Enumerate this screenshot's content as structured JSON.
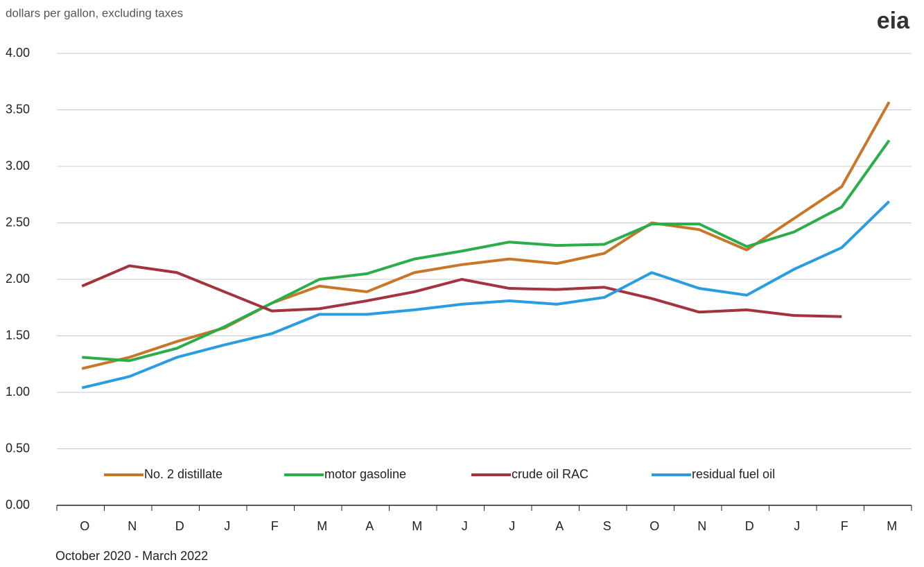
{
  "logo": "eia",
  "chart_data": {
    "type": "line",
    "subtitle": "dollars per gallon, excluding taxes",
    "x_label": "October 2020  -  March 2022",
    "categories": [
      "O",
      "N",
      "D",
      "J",
      "F",
      "M",
      "A",
      "M",
      "J",
      "J",
      "A",
      "S",
      "O",
      "N",
      "D",
      "J",
      "F",
      "M"
    ],
    "series": [
      {
        "name": "No. 2 distillate",
        "color": "#c8762a",
        "values": [
          1.21,
          1.31,
          1.45,
          1.57,
          1.79,
          1.94,
          1.89,
          2.06,
          2.13,
          2.18,
          2.14,
          2.23,
          2.5,
          2.44,
          2.26,
          2.54,
          2.82,
          3.57
        ]
      },
      {
        "name": "motor gasoline",
        "color": "#2bad4a",
        "values": [
          1.31,
          1.28,
          1.39,
          1.58,
          1.79,
          2.0,
          2.05,
          2.18,
          2.25,
          2.33,
          2.3,
          2.31,
          2.49,
          2.49,
          2.29,
          2.42,
          2.64,
          3.23
        ]
      },
      {
        "name": "crude oil RAC",
        "color": "#a3343e",
        "values": [
          1.94,
          2.12,
          2.06,
          1.89,
          1.72,
          1.74,
          1.81,
          1.89,
          2.0,
          1.92,
          1.91,
          1.93,
          1.83,
          1.71,
          1.73,
          1.68,
          1.67,
          null
        ]
      },
      {
        "name": "residual fuel oil",
        "color": "#2a9de0",
        "values": [
          1.04,
          1.14,
          1.31,
          1.42,
          1.52,
          1.69,
          1.69,
          1.73,
          1.78,
          1.81,
          1.78,
          1.84,
          2.06,
          1.92,
          1.86,
          2.09,
          2.28,
          2.69
        ]
      }
    ],
    "ylim": [
      0,
      4
    ],
    "yticks": [
      {
        "value": 0,
        "label": "0.00"
      },
      {
        "value": 0.5,
        "label": "0.50"
      },
      {
        "value": 1,
        "label": "1.00"
      },
      {
        "value": 1.5,
        "label": "1.50"
      },
      {
        "value": 2,
        "label": "2.00"
      },
      {
        "value": 2.5,
        "label": "2.50"
      },
      {
        "value": 3,
        "label": "3.00"
      },
      {
        "value": 3.5,
        "label": "3.50"
      },
      {
        "value": 4,
        "label": "4.00"
      }
    ],
    "grid": true,
    "legend": "bottom"
  }
}
